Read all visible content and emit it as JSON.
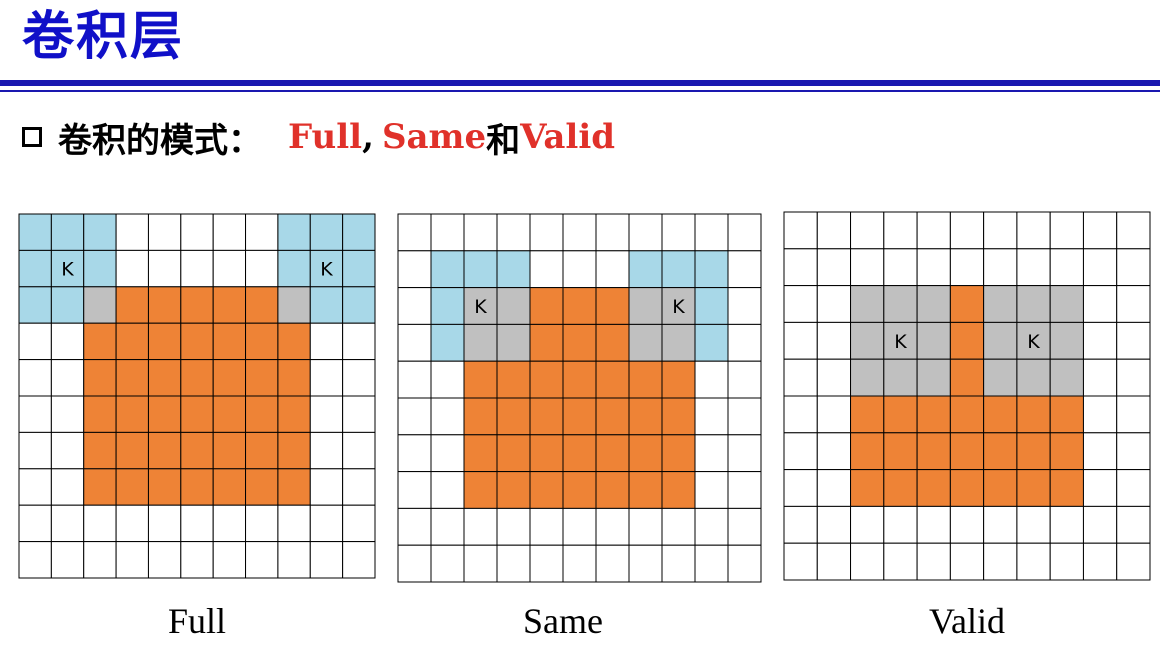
{
  "title": "卷积层",
  "bullet": {
    "prefix": "卷积的模式：",
    "mode1": "Full",
    "comma": ",",
    "mode2": "Same",
    "conj": "和",
    "mode3": "Valid"
  },
  "colors": {
    "title": "#1010c8",
    "highlight": "#e0312a",
    "kernel": "#a8d8e8",
    "overlap": "#c0c0c0",
    "input": "#ee8336",
    "grid_line": "#000000"
  },
  "panels": [
    {
      "caption": "Full",
      "kernel_label": "K",
      "grid": {
        "rows": 10,
        "cols": 11
      },
      "input": {
        "row": 2,
        "col": 2,
        "rows": 6,
        "cols": 7
      },
      "kernels": [
        {
          "row": 0,
          "col": 0,
          "size": 3
        },
        {
          "row": 0,
          "col": 8,
          "size": 3
        }
      ],
      "orange_over_kernel_cells": []
    },
    {
      "caption": "Same",
      "kernel_label": "K",
      "grid": {
        "rows": 10,
        "cols": 11
      },
      "input": {
        "row": 2,
        "col": 2,
        "rows": 6,
        "cols": 7
      },
      "kernels": [
        {
          "row": 1,
          "col": 1,
          "size": 3
        },
        {
          "row": 1,
          "col": 7,
          "size": 3
        }
      ],
      "orange_over_kernel_cells": []
    },
    {
      "caption": "Valid",
      "kernel_label": "K",
      "grid": {
        "rows": 10,
        "cols": 11
      },
      "input": {
        "row": 2,
        "col": 2,
        "rows": 6,
        "cols": 7
      },
      "kernels": [
        {
          "row": 2,
          "col": 2,
          "size": 3
        },
        {
          "row": 2,
          "col": 6,
          "size": 3
        }
      ],
      "orange_over_kernel_cells": [
        [
          2,
          5
        ],
        [
          3,
          5
        ],
        [
          4,
          5
        ]
      ]
    }
  ]
}
